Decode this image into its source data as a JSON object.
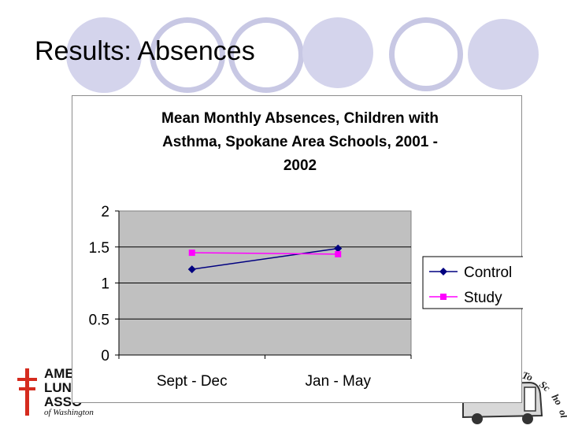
{
  "slide": {
    "title": "Results: Absences"
  },
  "logo": {
    "line1": "AME",
    "line2": "LUN",
    "line3": "ASSO",
    "subtitle": "of Washington",
    "cross_color": "#d52b1e"
  },
  "school_logo": {
    "text": "To School",
    "icon": "school-bus-icon"
  },
  "colors": {
    "plot_bg": "#c0c0c0",
    "control": "#000080",
    "study": "#ff00ff",
    "circle_fill": "#d4d4ec",
    "circle_ring": "#c8c8e4"
  },
  "chart_data": {
    "type": "line",
    "title_lines": [
      "Mean Monthly Absences, Children with",
      "Asthma, Spokane Area Schools, 2001 -",
      "2002"
    ],
    "categories": [
      "Sept - Dec",
      "Jan - May"
    ],
    "series": [
      {
        "name": "Control",
        "values": [
          1.19,
          1.48
        ],
        "color": "#000080",
        "marker": "diamond"
      },
      {
        "name": "Study",
        "values": [
          1.42,
          1.4
        ],
        "color": "#ff00ff",
        "marker": "square"
      }
    ],
    "ylim": [
      0,
      2
    ],
    "yticks": [
      "0",
      "0.5",
      "1",
      "1.5",
      "2"
    ],
    "grid": true,
    "legend": "right"
  }
}
